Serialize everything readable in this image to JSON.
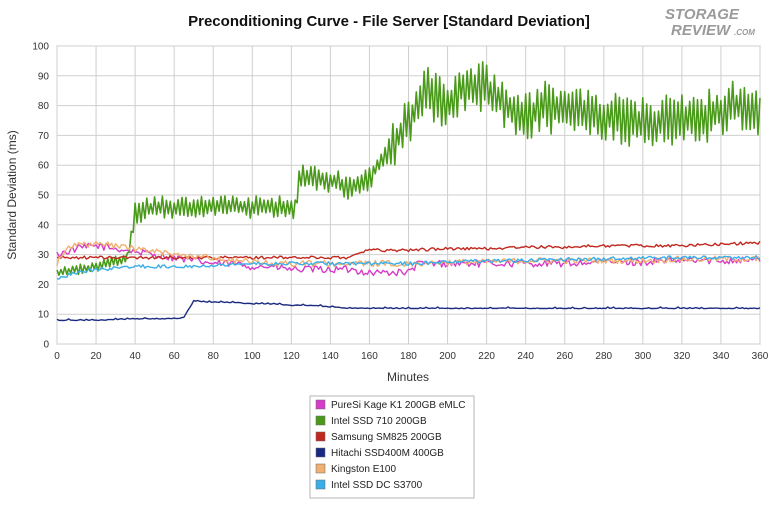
{
  "chart_data": {
    "type": "line",
    "title": "Preconditioning Curve - File Server [Standard Deviation]",
    "xlabel": "Minutes",
    "ylabel": "Standard Deviation (ms)",
    "xlim": [
      0,
      360
    ],
    "ylim": [
      0,
      100
    ],
    "xticks": [
      0,
      20,
      40,
      60,
      80,
      100,
      120,
      140,
      160,
      180,
      200,
      220,
      240,
      260,
      280,
      300,
      320,
      340,
      360
    ],
    "yticks": [
      0,
      10,
      20,
      30,
      40,
      50,
      60,
      70,
      80,
      90,
      100
    ],
    "grid": true,
    "legend_position": "bottom-center",
    "series": [
      {
        "name": "PureSi Kage K1 200GB eMLC",
        "color": "#d63cc8",
        "x": [
          0,
          10,
          20,
          30,
          40,
          50,
          60,
          70,
          80,
          90,
          100,
          110,
          120,
          130,
          140,
          150,
          160,
          170,
          180,
          185,
          190,
          200,
          220,
          240,
          260,
          280,
          300,
          320,
          340,
          360
        ],
        "y": [
          30,
          32,
          33,
          32,
          31,
          30,
          29,
          28,
          27,
          27,
          26,
          26,
          25,
          25,
          25,
          25,
          24,
          24,
          24,
          27,
          27,
          27,
          27,
          27,
          27,
          27.5,
          27.5,
          28,
          28,
          28.5
        ]
      },
      {
        "name": "Intel SSD 710 200GB",
        "color": "#4a9a1a",
        "x": [
          0,
          10,
          20,
          30,
          36,
          38,
          40,
          50,
          60,
          70,
          80,
          90,
          100,
          110,
          120,
          122,
          124,
          126,
          130,
          140,
          150,
          160,
          170,
          180,
          190,
          200,
          210,
          220,
          230,
          240,
          250,
          260,
          270,
          280,
          290,
          300,
          310,
          320,
          330,
          340,
          350,
          360
        ],
        "y": [
          24,
          25,
          26,
          28,
          29,
          35,
          44,
          46,
          46,
          46,
          46,
          46,
          46,
          46,
          46,
          44,
          55,
          57,
          56,
          55,
          52,
          56,
          65,
          75,
          85,
          80,
          88,
          86,
          80,
          76,
          80,
          78,
          78,
          76,
          76,
          74,
          75,
          76,
          76,
          78,
          80,
          78
        ]
      },
      {
        "name": "Samsung SM825 200GB",
        "color": "#c0281e",
        "x": [
          0,
          20,
          40,
          60,
          80,
          100,
          120,
          140,
          150,
          155,
          160,
          180,
          200,
          220,
          240,
          260,
          280,
          300,
          320,
          340,
          360
        ],
        "y": [
          29,
          29,
          29,
          29,
          29,
          29,
          29,
          29,
          29,
          31,
          31.5,
          31.5,
          32,
          32,
          32.5,
          32.5,
          33,
          33,
          33,
          33.5,
          34
        ]
      },
      {
        "name": "Hitachi SSD400M 400GB",
        "color": "#1a2a80",
        "x": [
          0,
          20,
          40,
          60,
          65,
          70,
          80,
          90,
          100,
          110,
          120,
          130,
          140,
          150,
          160,
          180,
          200,
          220,
          240,
          260,
          280,
          300,
          320,
          340,
          360
        ],
        "y": [
          8,
          8,
          8.5,
          8.5,
          9,
          14.5,
          14,
          14,
          13.5,
          13.5,
          13,
          13,
          12.5,
          12,
          12,
          12,
          12,
          12,
          12,
          12,
          12,
          12,
          12,
          12,
          12
        ]
      },
      {
        "name": "Kingston E100",
        "color": "#f0b070",
        "x": [
          0,
          5,
          10,
          20,
          30,
          40,
          50,
          60,
          70,
          80,
          90,
          100,
          110,
          120,
          140,
          160,
          180,
          200,
          220,
          240,
          260,
          280,
          300,
          320,
          340,
          360
        ],
        "y": [
          27,
          33,
          33,
          33.5,
          33,
          32,
          31,
          30,
          29.5,
          29,
          28,
          27.5,
          27,
          27,
          27,
          27,
          27,
          27.5,
          27.5,
          28,
          28,
          28,
          28,
          28.5,
          28.5,
          28.5
        ]
      },
      {
        "name": "Intel SSD DC S3700",
        "color": "#3aaee8",
        "x": [
          0,
          10,
          20,
          40,
          60,
          80,
          100,
          120,
          140,
          160,
          180,
          200,
          220,
          240,
          260,
          280,
          300,
          320,
          340,
          360
        ],
        "y": [
          22,
          24,
          25,
          26,
          26,
          26.5,
          27,
          27,
          27,
          27,
          27,
          27.5,
          28,
          28,
          28.5,
          28.5,
          29,
          29,
          29,
          29
        ]
      }
    ]
  },
  "logo": {
    "line1": "STORAGE",
    "line2": "REVIEW",
    "suffix": ".COM"
  }
}
